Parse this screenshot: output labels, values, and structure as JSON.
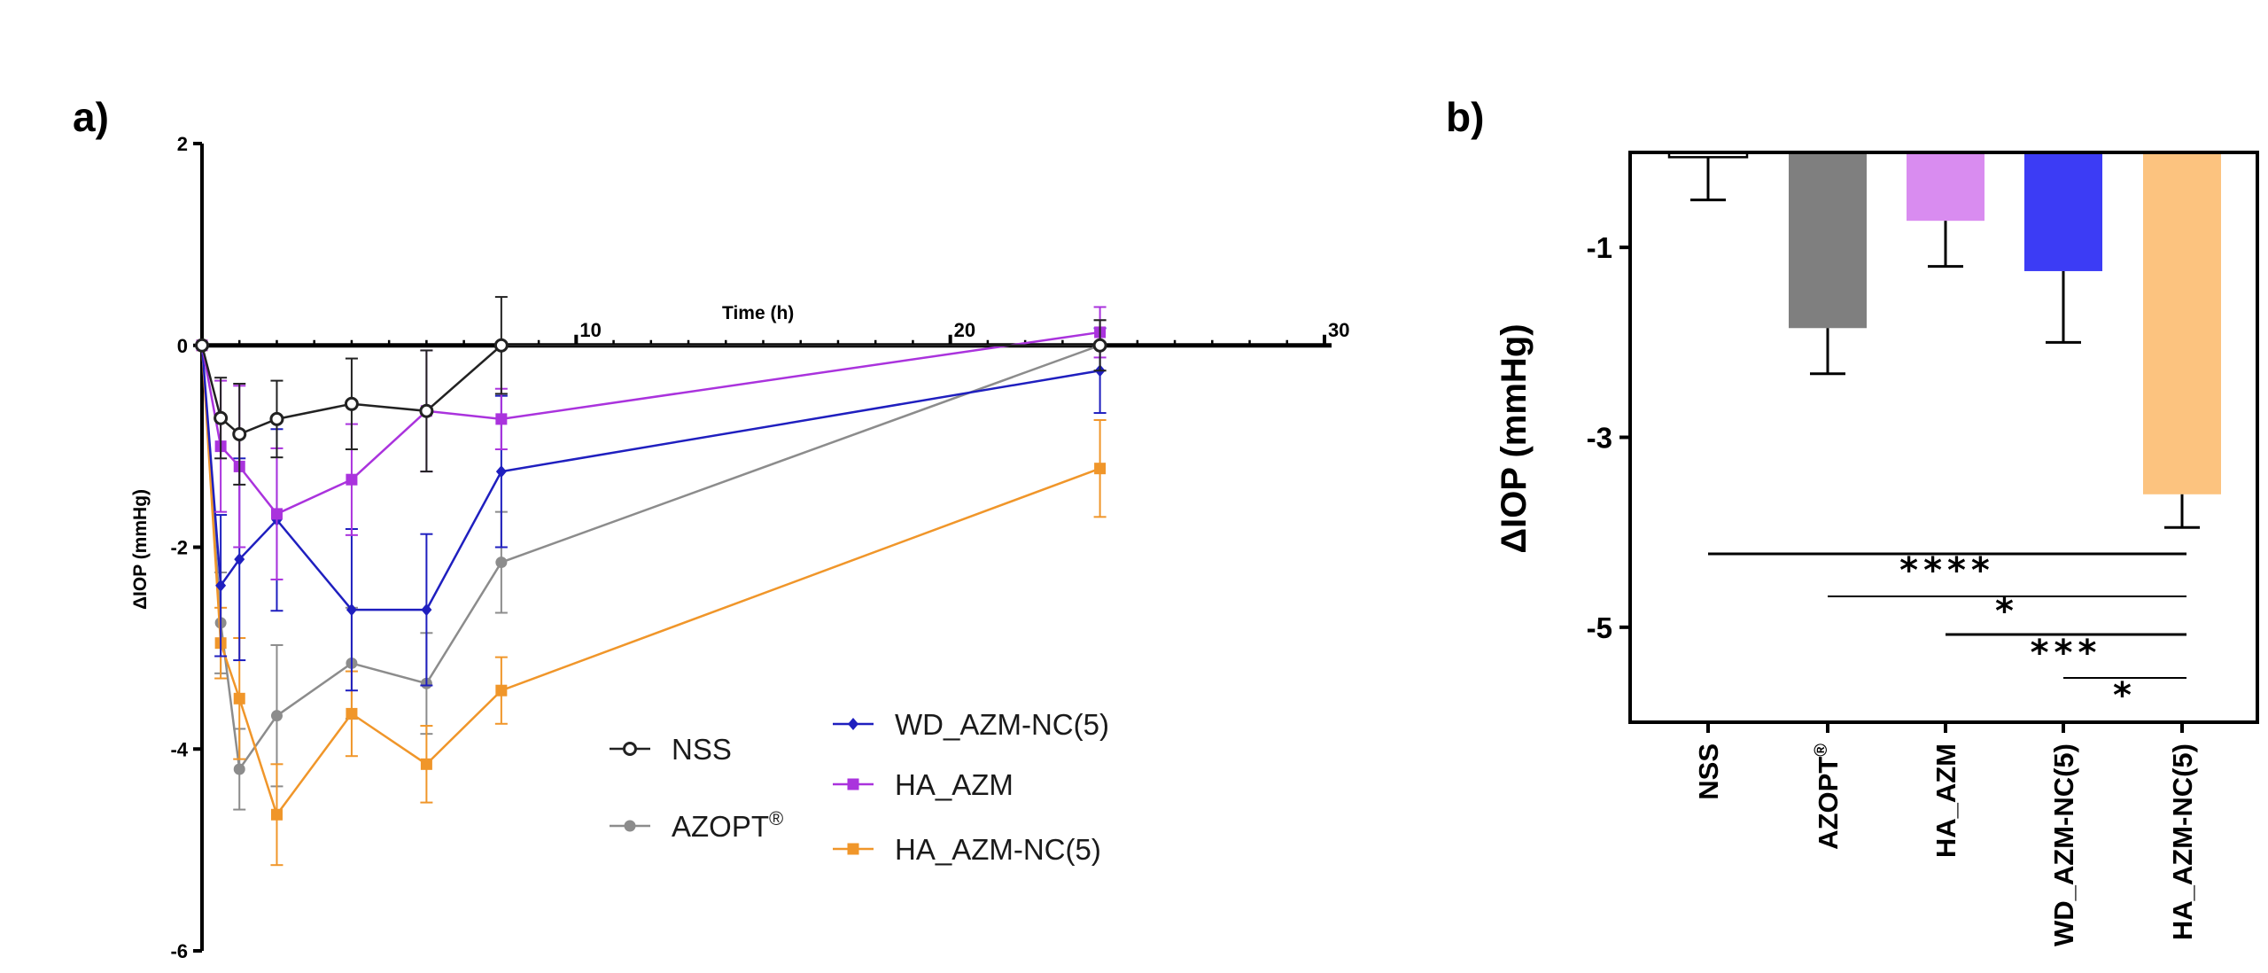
{
  "chart_data": [
    {
      "panel": "a)",
      "type": "line",
      "xlabel": "Time (h)",
      "ylabel": "ΔIOP (mmHg)",
      "xlim": [
        0,
        30
      ],
      "ylim": [
        -6,
        2
      ],
      "x_ticks": [
        10,
        20,
        30
      ],
      "y_ticks": [
        2,
        0,
        -2,
        -4,
        -6
      ],
      "x": [
        0,
        0.5,
        1,
        2,
        4,
        6,
        8,
        24
      ],
      "series": [
        {
          "name": "NSS",
          "color": "#222222",
          "marker": "open-circle",
          "values": [
            0,
            -0.72,
            -0.88,
            -0.73,
            -0.58,
            -0.65,
            0,
            0
          ],
          "errors": [
            0,
            0.4,
            0.5,
            0.38,
            0.45,
            0.6,
            0.48,
            0.25
          ]
        },
        {
          "name": "AZOPT",
          "sup": "®",
          "color": "#8c8c8c",
          "marker": "circle",
          "values": [
            0,
            -2.75,
            -4.2,
            -3.67,
            -3.15,
            -3.35,
            -2.15,
            0
          ],
          "errors": [
            0,
            0.5,
            0.4,
            0.7,
            0.55,
            0.5,
            0.5,
            0.25
          ]
        },
        {
          "name": "WD_AZM-NC(5)",
          "color": "#1f1fbf",
          "marker": "diamond",
          "values": [
            0,
            -2.38,
            -2.12,
            -1.73,
            -2.62,
            -2.62,
            -1.25,
            -0.25
          ],
          "errors": [
            0,
            0.7,
            1.0,
            0.9,
            0.8,
            0.75,
            0.75,
            0.42
          ]
        },
        {
          "name": "HA_AZM",
          "color": "#aa33dd",
          "marker": "square",
          "values": [
            0,
            -1.0,
            -1.2,
            -1.67,
            -1.33,
            -0.65,
            -0.73,
            0.13
          ],
          "errors": [
            0,
            0.65,
            0.8,
            0.65,
            0.55,
            0.6,
            0.3,
            0.25
          ]
        },
        {
          "name": "HA_AZM-NC(5)",
          "color": "#f0962a",
          "marker": "square",
          "values": [
            0,
            -2.95,
            -3.5,
            -4.65,
            -3.65,
            -4.15,
            -3.42,
            -1.22
          ],
          "errors": [
            0,
            0.35,
            0.6,
            0.5,
            0.42,
            0.38,
            0.33,
            0.48
          ]
        }
      ]
    },
    {
      "panel": "b)",
      "type": "bar",
      "ylabel": "ΔIOP (mmHg)",
      "ylim": [
        -6,
        0
      ],
      "y_ticks": [
        -1,
        -3,
        -5
      ],
      "categories": [
        "NSS",
        "AZOPT",
        "HA_AZM",
        "WD_AZM-NC(5)",
        "HA_AZM-NC(5)"
      ],
      "category_sup": [
        "",
        "®",
        "",
        "",
        ""
      ],
      "values": [
        -0.05,
        -1.85,
        -0.72,
        -1.25,
        -3.6
      ],
      "errors": [
        0.45,
        0.48,
        0.48,
        0.75,
        0.35
      ],
      "colors": [
        "#ffffff",
        "#7f7f7f",
        "#d98cf0",
        "#3c3cf5",
        "#fcc37f"
      ],
      "significance": [
        {
          "from": 0,
          "to": 4,
          "label": "****"
        },
        {
          "from": 1,
          "to": 4,
          "label": "*"
        },
        {
          "from": 2,
          "to": 4,
          "label": "***"
        },
        {
          "from": 3,
          "to": 4,
          "label": "*"
        }
      ]
    }
  ]
}
